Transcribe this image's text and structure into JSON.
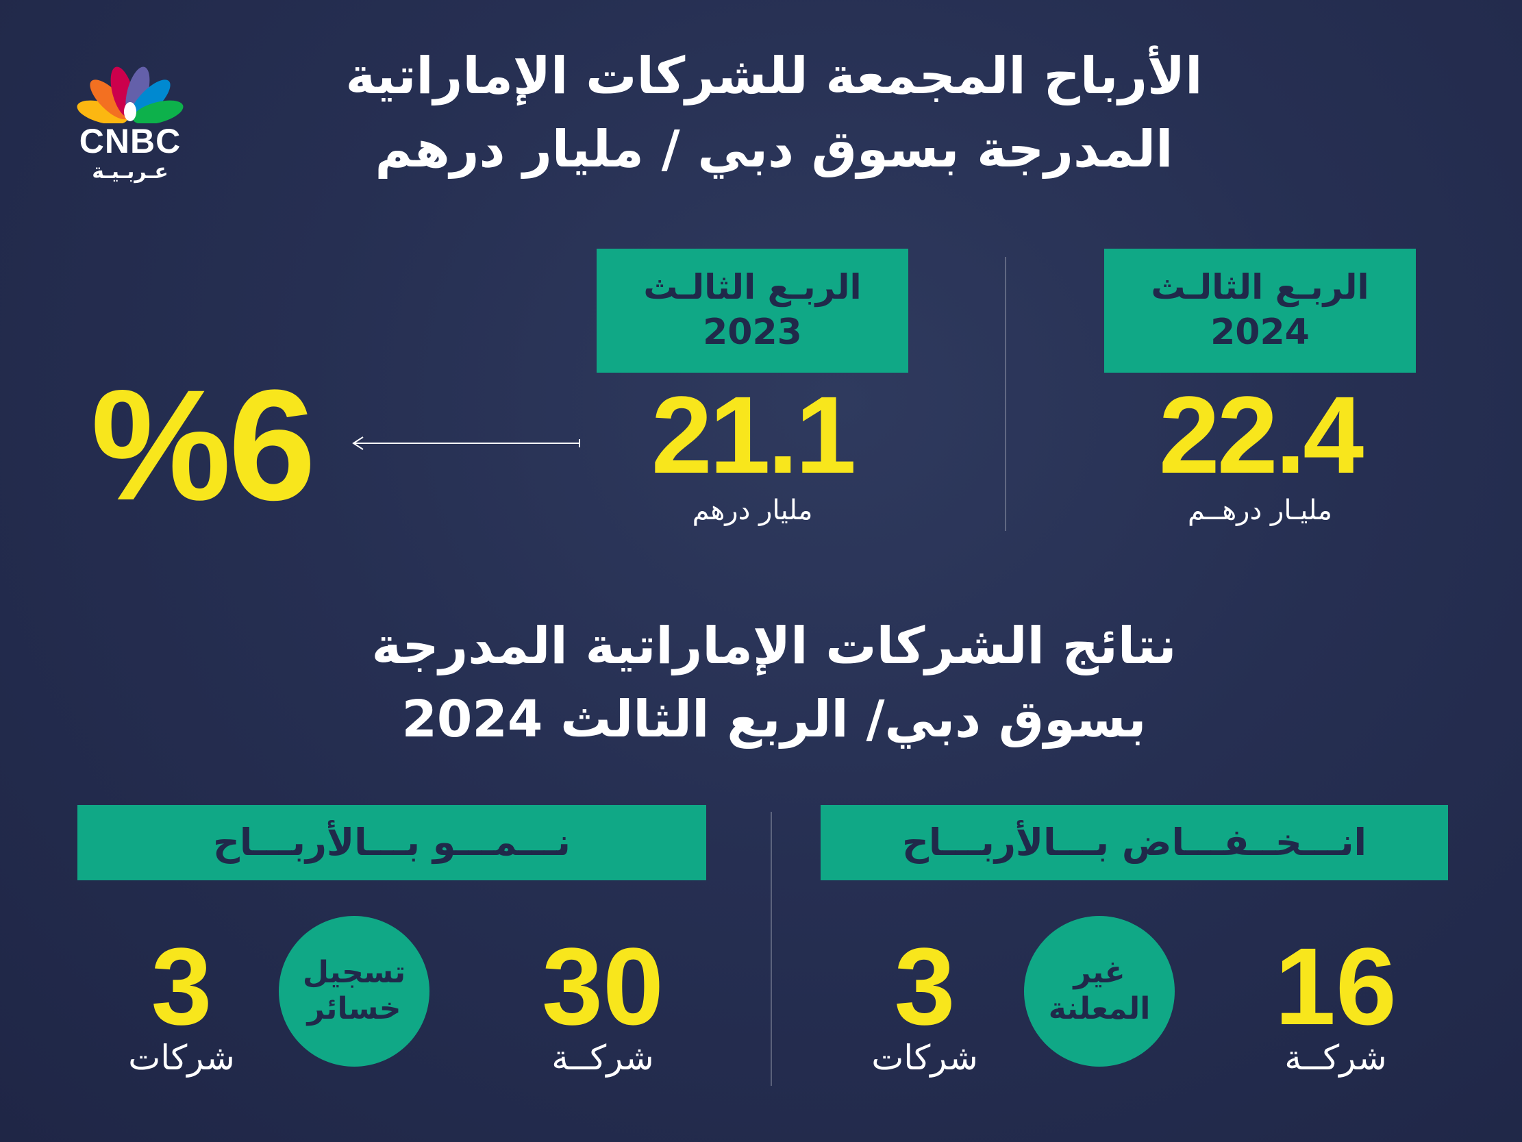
{
  "brand": {
    "name_en": "CNBC",
    "name_ar": "عـربـيـة",
    "colors": [
      "#fcb711",
      "#f37021",
      "#cc004c",
      "#6460aa",
      "#0089d0",
      "#0db14b"
    ]
  },
  "header": {
    "title_line1": "الأرباح المجمعة للشركات الإماراتية",
    "title_line2": "المدرجة بسوق دبي / مليار درهم"
  },
  "comparison": {
    "q3_2024": {
      "label": "الربـع الثالـث",
      "year": "2024",
      "value": "22.4",
      "unit": "مليـار درهــم"
    },
    "q3_2023": {
      "label": "الربـع الثالـث",
      "year": "2023",
      "value": "21.1",
      "unit": "مليار درهم"
    },
    "change": "%6"
  },
  "results": {
    "title_line1": "نتائج الشركات الإماراتية المدرجة",
    "title_line2": "بسوق دبي/ الربع الثالث 2024",
    "decline": {
      "header": "انـــخــفـــاض بـــالأربـــاح",
      "count": "16",
      "count_label": "شركــة",
      "undisclosed_line1": "غير",
      "undisclosed_line2": "المعلنة",
      "undisclosed_count": "3",
      "undisclosed_label": "شركات"
    },
    "growth": {
      "header": "نـــمـــو بـــالأربـــاح",
      "count": "30",
      "count_label": "شركــة",
      "loss_line1": "تسجيل",
      "loss_line2": "خسائر",
      "loss_count": "3",
      "loss_label": "شركات"
    }
  },
  "palette": {
    "background": "#262f52",
    "accent_green": "#10a886",
    "accent_yellow": "#f8e61c",
    "text_dark": "#20294a"
  }
}
